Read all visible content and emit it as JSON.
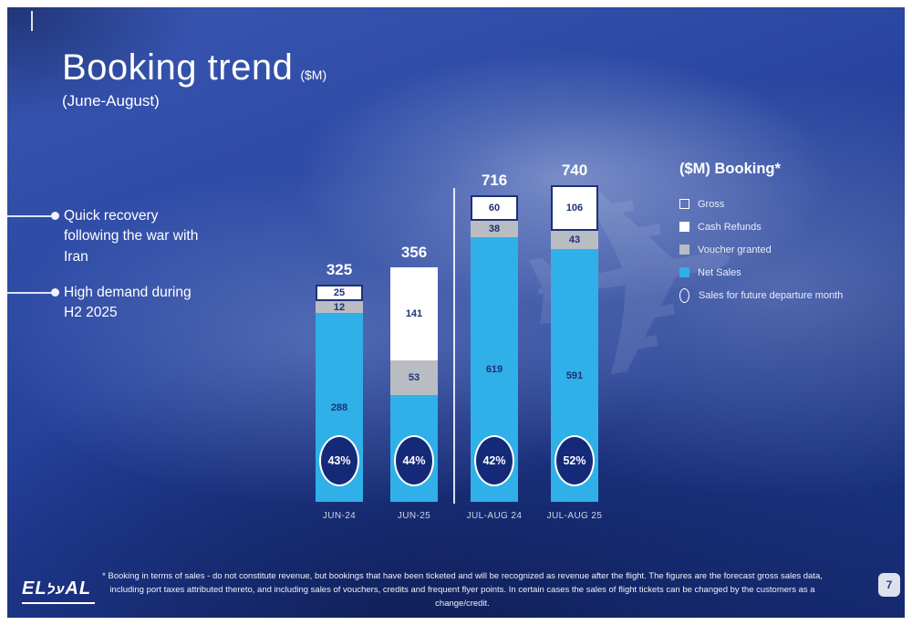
{
  "slide": {
    "title": "Booking trend",
    "title_unit": "($M)",
    "subtitle": "(June-August)",
    "bullets": [
      "Quick recovery following the war with Iran",
      "High demand during H2 2025"
    ],
    "legend": {
      "title": "($M) Booking*",
      "items": [
        {
          "label": "Gross",
          "swatch": "outline"
        },
        {
          "label": "Cash Refunds",
          "swatch": "white"
        },
        {
          "label": "Voucher granted",
          "swatch": "gray"
        },
        {
          "label": "Net Sales",
          "swatch": "blue"
        },
        {
          "label": "Sales for future departure month",
          "swatch": "oval"
        }
      ]
    },
    "footnote": "* Booking in terms of sales - do not constitute revenue, but bookings that have been ticketed and will be recognized as revenue after the flight. The figures are the forecast gross sales data, including port taxes attributed thereto, and including sales of vouchers, credits and frequent flyer points. In certain cases the sales of flight tickets can be changed by the customers as a change/credit.",
    "page_number": "7",
    "logo": {
      "left": "EL",
      "hebrew": "על",
      "right": "AL"
    }
  },
  "colors": {
    "background_navy": "#20398f",
    "net_sales_blue": "#2fb0e8",
    "voucher_gray": "#b9bcc2",
    "cash_refunds_white": "#ffffff",
    "label_navy": "#1d3178",
    "oval_navy": "#142a78"
  },
  "chart_data": {
    "type": "bar",
    "stacked": true,
    "title": "Booking trend ($M) (June-August)",
    "unit": "$M",
    "categories": [
      "JUN-24",
      "JUN-25",
      "JUL-AUG 24",
      "JUL-AUG 25"
    ],
    "bars": [
      {
        "category": "JUN-24",
        "total": 325,
        "future_departure_share": "43%",
        "segments": [
          {
            "value": 25,
            "kind": "gross"
          },
          {
            "value": 12,
            "kind": "voucher"
          },
          {
            "value": 288,
            "kind": "net"
          }
        ]
      },
      {
        "category": "JUN-25",
        "total": 356,
        "future_departure_share": "44%",
        "segments": [
          {
            "value": 141,
            "kind": "cash"
          },
          {
            "value": 53,
            "kind": "voucher"
          },
          {
            "value": 162,
            "kind": "net"
          }
        ]
      },
      {
        "category": "JUL-AUG 24",
        "total": 716,
        "future_departure_share": "42%",
        "segments": [
          {
            "value": 60,
            "kind": "gross"
          },
          {
            "value": 38,
            "kind": "voucher"
          },
          {
            "value": 619,
            "kind": "net"
          }
        ]
      },
      {
        "category": "JUL-AUG 25",
        "total": 740,
        "future_departure_share": "52%",
        "segments": [
          {
            "value": 106,
            "kind": "gross"
          },
          {
            "value": 43,
            "kind": "voucher"
          },
          {
            "value": 591,
            "kind": "net"
          }
        ]
      }
    ],
    "series": [
      {
        "name": "Cash Refunds",
        "values": [
          25,
          141,
          60,
          106
        ]
      },
      {
        "name": "Voucher granted",
        "values": [
          12,
          53,
          38,
          43
        ]
      },
      {
        "name": "Net Sales",
        "values": [
          288,
          162,
          619,
          591
        ]
      }
    ],
    "totals": [
      325,
      356,
      716,
      740
    ],
    "future_departure_share": [
      "43%",
      "44%",
      "42%",
      "52%"
    ],
    "legend_position": "right"
  }
}
